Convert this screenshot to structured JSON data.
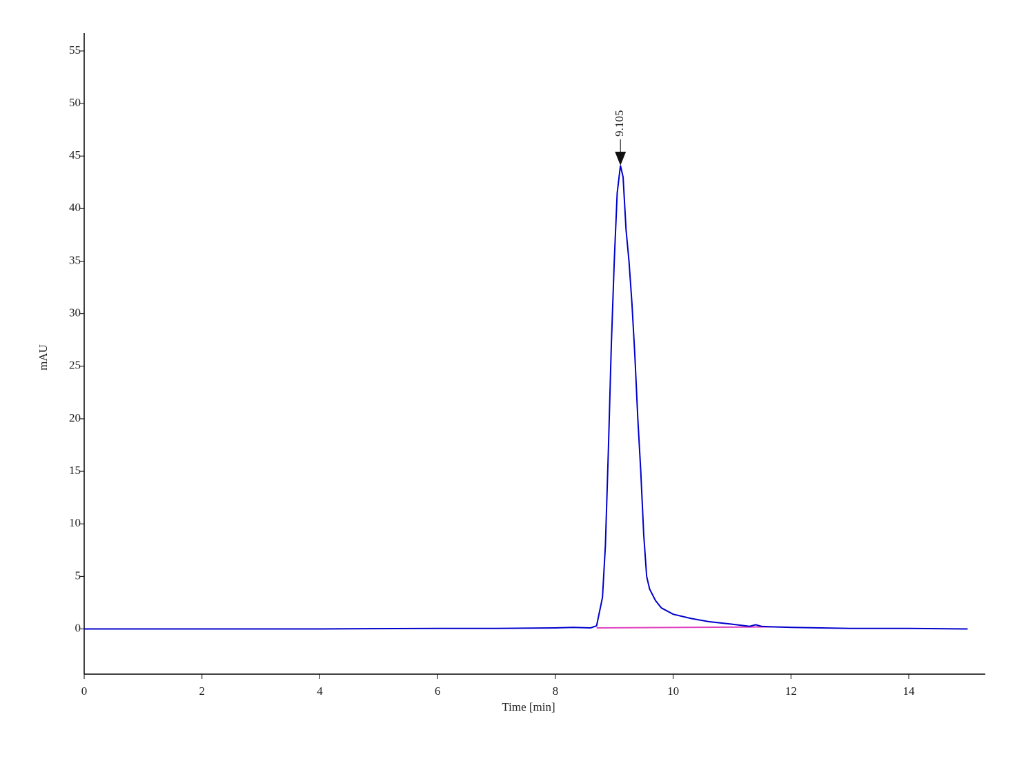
{
  "chart_data": {
    "type": "line",
    "xlabel": "Time [min]",
    "ylabel": "mAU",
    "xlim": [
      0,
      15.3
    ],
    "ylim": [
      -4.3,
      56.7
    ],
    "xticks": [
      0,
      2,
      4,
      6,
      8,
      10,
      12,
      14
    ],
    "yticks": [
      0,
      5,
      10,
      15,
      20,
      25,
      30,
      35,
      40,
      45,
      50,
      55
    ],
    "grid": false,
    "series": [
      {
        "color": "#e040c0",
        "x": [
          8.7,
          11.7
        ],
        "values": [
          0.1,
          0.2
        ]
      },
      {
        "color": "#0000cc",
        "x": [
          0,
          2,
          4,
          6,
          7,
          8,
          8.3,
          8.6,
          8.7,
          8.8,
          8.85,
          8.9,
          8.95,
          9.0,
          9.05,
          9.105,
          9.15,
          9.2,
          9.25,
          9.3,
          9.35,
          9.4,
          9.45,
          9.5,
          9.55,
          9.6,
          9.7,
          9.8,
          10.0,
          10.3,
          10.6,
          11.0,
          11.3,
          11.4,
          11.5,
          11.7,
          12,
          13,
          14,
          15
        ],
        "values": [
          0,
          0,
          0,
          0.05,
          0.05,
          0.1,
          0.15,
          0.1,
          0.3,
          3,
          8,
          17,
          27,
          35,
          41.5,
          44.1,
          43,
          38,
          35,
          31,
          26,
          20,
          15,
          9,
          5,
          3.8,
          2.7,
          2.0,
          1.4,
          1.0,
          0.7,
          0.45,
          0.25,
          0.4,
          0.25,
          0.2,
          0.15,
          0.05,
          0.05,
          0
        ]
      }
    ],
    "annotations": [
      {
        "x": 9.105,
        "y": 44.1
      }
    ]
  }
}
